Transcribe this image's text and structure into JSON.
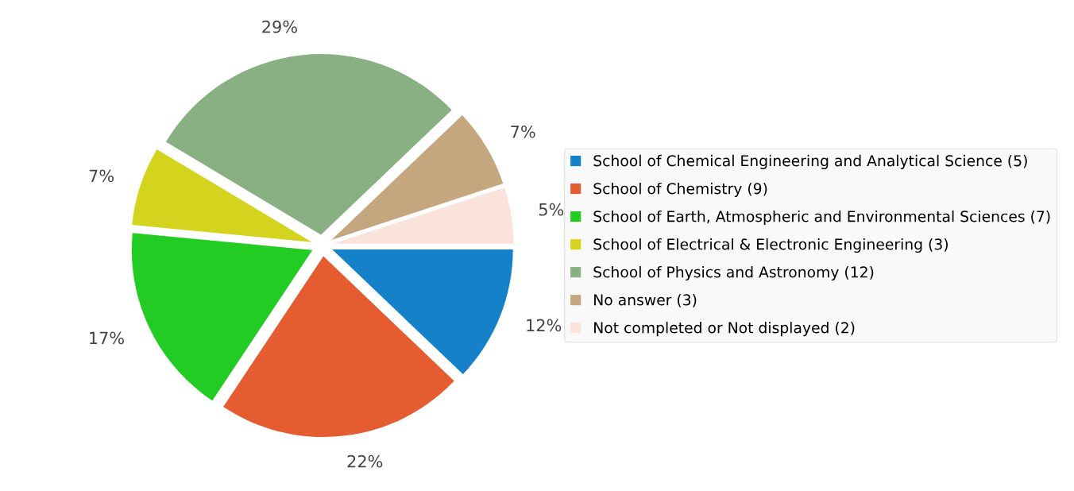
{
  "chart_data": {
    "type": "pie",
    "categories": [
      "School of Chemical Engineering and Analytical Science (5)",
      "School of Chemistry (9)",
      "School of Earth, Atmospheric and Environmental Sciences (7)",
      "School of Electrical & Electronic Engineering (3)",
      "School of Physics and Astronomy (12)",
      "No answer (3)",
      "Not completed or Not displayed (2)"
    ],
    "values": [
      12,
      22,
      17,
      7,
      29,
      7,
      5
    ],
    "value_labels": [
      "12%",
      "22%",
      "17%",
      "7%",
      "29%",
      "7%",
      "5%"
    ],
    "colors": [
      "#1481c8",
      "#e55c30",
      "#22cc22",
      "#d4d41e",
      "#88b083",
      "#c4a77e",
      "#fae3da"
    ],
    "legend": "right"
  }
}
